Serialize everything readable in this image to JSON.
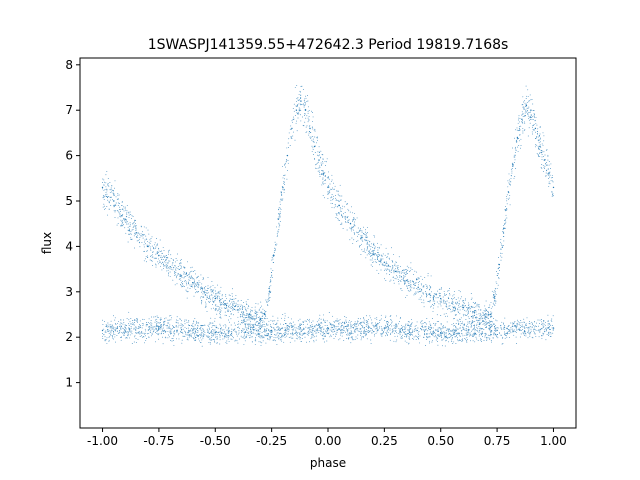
{
  "chart_data": {
    "type": "scatter",
    "title": "1SWASPJ141359.55+472642.3 Period 19819.7168s",
    "xlabel": "phase",
    "ylabel": "flux",
    "xlim": [
      -1.1,
      1.1
    ],
    "ylim": [
      0.0,
      8.15
    ],
    "xticks": [
      "-1.00",
      "-0.75",
      "-0.50",
      "-0.25",
      "0.00",
      "0.25",
      "0.50",
      "0.75",
      "1.00"
    ],
    "yticks": [
      "1",
      "2",
      "3",
      "4",
      "5",
      "6",
      "7",
      "8"
    ],
    "grid": false,
    "legend": "none",
    "marker_color": "#1f77b4",
    "series": [
      {
        "x": [
          -1.0,
          -0.95,
          -0.9,
          -0.85,
          -0.8,
          -0.75,
          -0.7,
          -0.65,
          -0.6,
          -0.55,
          -0.5,
          -0.45,
          -0.4,
          -0.35,
          -0.3,
          -0.28,
          -0.26,
          -0.24,
          -0.22,
          -0.2,
          -0.18,
          -0.16,
          -0.14,
          -0.12,
          -0.1,
          -0.08,
          -0.06,
          -0.04,
          -0.02,
          0.0,
          0.05,
          0.1,
          0.15,
          0.2,
          0.25,
          0.3,
          0.35,
          0.4,
          0.45,
          0.5,
          0.55,
          0.6,
          0.65,
          0.7,
          0.72,
          0.74,
          0.76,
          0.78,
          0.8,
          0.82,
          0.84,
          0.86,
          0.88,
          0.9,
          0.92,
          0.94,
          0.96,
          0.98,
          1.0
        ],
        "y": [
          5.3,
          5.0,
          4.6,
          4.3,
          4.0,
          3.8,
          3.55,
          3.35,
          3.2,
          3.0,
          2.85,
          2.7,
          2.6,
          2.5,
          2.4,
          2.5,
          3.0,
          3.8,
          4.6,
          5.3,
          6.0,
          6.6,
          7.0,
          7.2,
          7.0,
          6.6,
          6.2,
          5.9,
          5.6,
          5.3,
          4.9,
          4.5,
          4.2,
          3.9,
          3.65,
          3.45,
          3.25,
          3.1,
          2.95,
          2.85,
          2.75,
          2.65,
          2.55,
          2.45,
          2.5,
          2.9,
          3.6,
          4.4,
          5.2,
          5.8,
          6.4,
          6.8,
          7.1,
          7.0,
          6.6,
          6.2,
          5.9,
          5.6,
          5.3
        ]
      },
      {
        "x": [
          -1.0,
          -0.75,
          -0.5,
          -0.25,
          0.0,
          0.25,
          0.5,
          0.75,
          1.0
        ],
        "y": [
          2.15,
          2.2,
          2.1,
          2.15,
          2.2,
          2.2,
          2.1,
          2.15,
          2.2
        ]
      }
    ]
  }
}
